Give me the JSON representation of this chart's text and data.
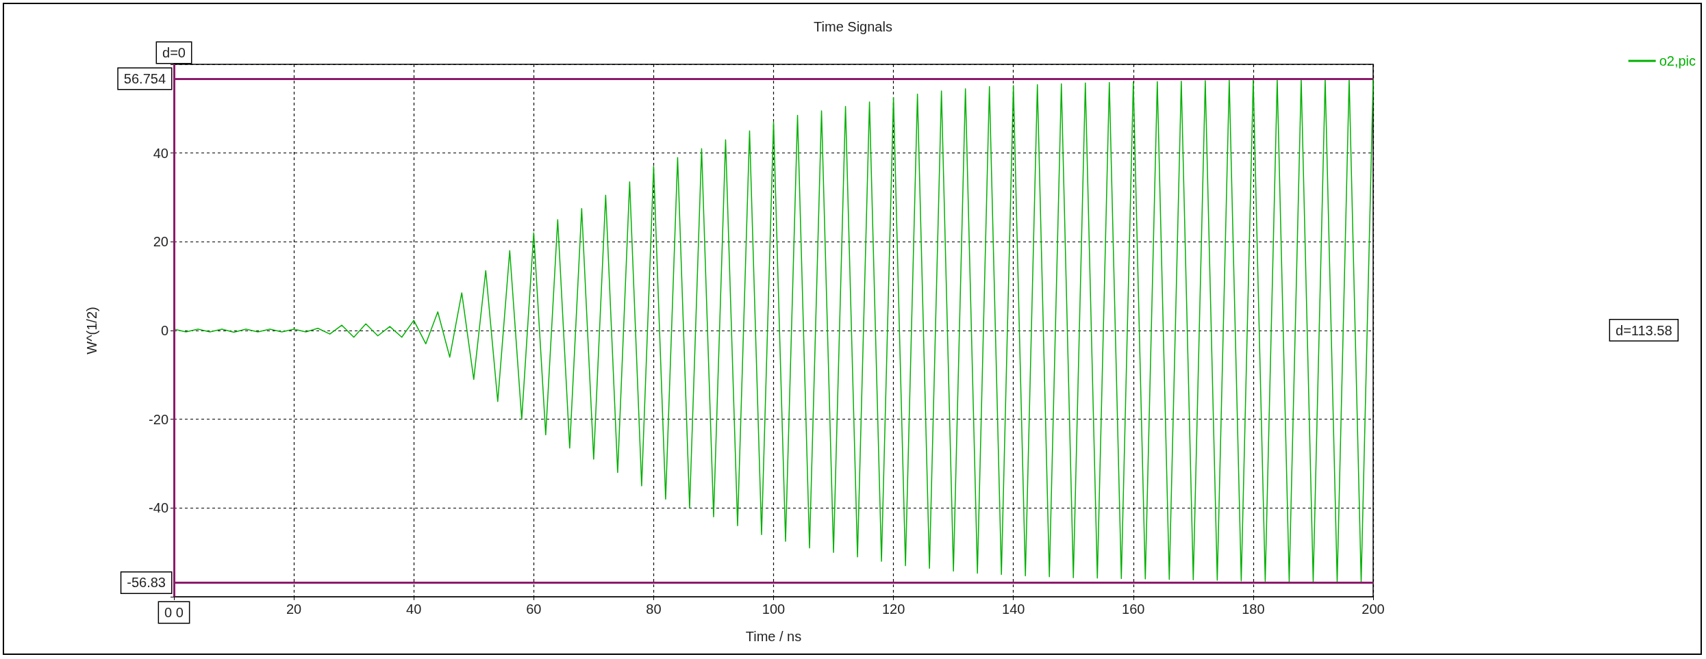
{
  "chart_data": {
    "type": "line",
    "title": "Time Signals",
    "xlabel": "Time / ns",
    "ylabel": "W^(1/2)",
    "series": [
      {
        "name": "o2,pic",
        "color": "#00b000",
        "x": [
          0,
          2,
          4,
          6,
          8,
          10,
          12,
          14,
          16,
          18,
          20,
          22,
          24,
          26,
          28,
          30,
          32,
          34,
          36,
          38,
          40,
          42,
          44,
          46,
          48,
          50,
          52,
          54,
          56,
          58,
          60,
          62,
          64,
          66,
          68,
          70,
          72,
          74,
          76,
          78,
          80,
          82,
          84,
          86,
          88,
          90,
          92,
          94,
          96,
          98,
          100,
          102,
          104,
          106,
          108,
          110,
          112,
          114,
          116,
          118,
          120,
          122,
          124,
          126,
          128,
          130,
          132,
          134,
          136,
          138,
          140,
          142,
          144,
          146,
          148,
          150,
          152,
          154,
          156,
          158,
          160,
          162,
          164,
          166,
          168,
          170,
          172,
          174,
          176,
          178,
          180,
          182,
          184,
          186,
          188,
          190,
          192,
          194,
          196,
          198,
          200
        ],
        "values": [
          0.3,
          -0.3,
          0.3,
          -0.3,
          0.3,
          -0.4,
          0.3,
          -0.3,
          0.3,
          -0.3,
          0.3,
          -0.3,
          0.5,
          -0.8,
          1.2,
          -1.5,
          1.5,
          -1.2,
          0.9,
          -1.5,
          2.3,
          -3,
          4.2,
          -6,
          8.5,
          -11,
          13.5,
          -16,
          18,
          -20,
          22,
          -23.5,
          25,
          -26.5,
          27.5,
          -29,
          30.5,
          -32,
          33.5,
          -35,
          37,
          -38,
          39,
          -40,
          41,
          -42,
          43,
          -44,
          45,
          -46,
          47,
          -47.5,
          48.5,
          -49,
          49.5,
          -50,
          50.5,
          -51,
          51.5,
          -52,
          52.5,
          -53,
          53.3,
          -53.6,
          54,
          -54.2,
          54.5,
          -54.7,
          55,
          -55,
          55.2,
          -55.3,
          55.4,
          -55.5,
          55.6,
          -55.7,
          55.8,
          -55.8,
          55.9,
          -55.9,
          56,
          -56,
          56.1,
          -56.1,
          56.2,
          -56.2,
          56.3,
          -56.3,
          56.4,
          -56.4,
          56.5,
          -56.5,
          56.5,
          -56.6,
          56.6,
          -56.6,
          56.6,
          -56.7,
          56.7,
          -56.7,
          56.7
        ]
      }
    ],
    "xlim": [
      0,
      200
    ],
    "xticks": [
      {
        "value": 0,
        "label": null
      },
      20,
      40,
      60,
      80,
      100,
      120,
      140,
      160,
      180,
      200
    ],
    "ylim": [
      -60,
      60
    ],
    "yticks": [
      {
        "value": -60,
        "label": null
      },
      -40,
      -20,
      0,
      20,
      40,
      {
        "value": 60,
        "label": null
      }
    ],
    "ref_lines": [
      {
        "axis": "y",
        "value": 56.754,
        "label": "56.754",
        "color": "#8b1a6b"
      },
      {
        "axis": "y",
        "value": -56.83,
        "label": "-56.83",
        "color": "#8b1a6b"
      },
      {
        "axis": "x",
        "value": 0,
        "label": "0 0",
        "color": "#8b1a6b"
      }
    ],
    "annotations": [
      {
        "text": "d=0",
        "x": 0,
        "y": 60
      },
      "d=113.58"
    ],
    "grid": true,
    "legend": "top right",
    "marker": "none",
    "line_style": "solid"
  }
}
